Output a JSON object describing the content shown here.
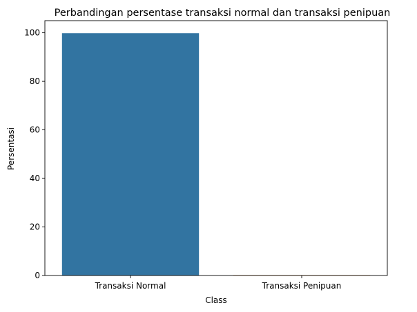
{
  "chart_data": {
    "type": "bar",
    "title": "Perbandingan persentase transaksi normal dan transaksi penipuan",
    "xlabel": "Class",
    "ylabel": "Persentasi",
    "categories": [
      "Transaksi Normal",
      "Transaksi Penipuan"
    ],
    "values": [
      99.83,
      0.17
    ],
    "colors": [
      "#3274a1",
      "#e1812c"
    ],
    "ylim": [
      0,
      105
    ],
    "yticks": [
      0,
      20,
      40,
      60,
      80,
      100
    ],
    "grid": false,
    "legend": "none"
  }
}
